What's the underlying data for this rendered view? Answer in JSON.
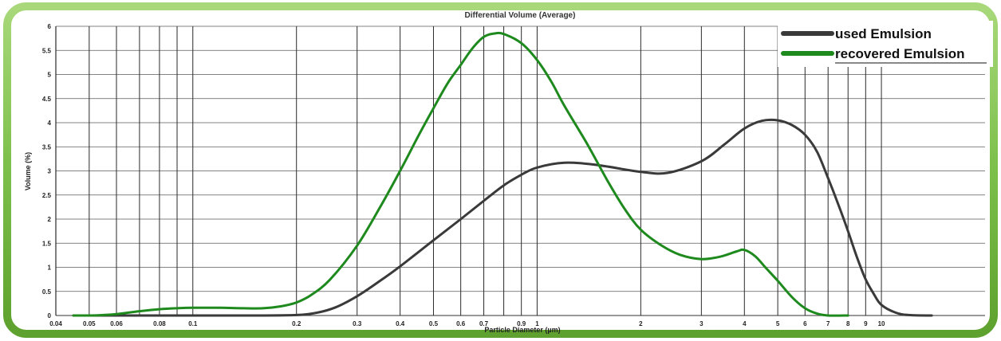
{
  "chart_data": {
    "type": "line",
    "title": "Differential Volume (Average)",
    "xlabel": "Particle Diameter (µm)",
    "ylabel": "Volume (%)",
    "xscale": "log",
    "xlim": [
      0.04,
      20
    ],
    "ylim": [
      0,
      6
    ],
    "grid": true,
    "legend_position": "top-right",
    "x_ticks": [
      0.04,
      0.05,
      0.06,
      0.08,
      0.1,
      0.2,
      0.3,
      0.4,
      0.5,
      0.6,
      0.7,
      0.9,
      1,
      2,
      3,
      4,
      5,
      6,
      7,
      8,
      9,
      10
    ],
    "x_tick_labels": [
      "0.04",
      "0.05",
      "0.06",
      "0.08",
      "0.1",
      "0.2",
      "0.3",
      "0.4",
      "0.5",
      "0.6",
      "0.7",
      "0.9",
      "1",
      "2",
      "3",
      "4",
      "5",
      "6",
      "7",
      "8",
      "9",
      "10"
    ],
    "x_gridlines": [
      0.05,
      0.06,
      0.07,
      0.08,
      0.09,
      0.1,
      0.2,
      0.3,
      0.4,
      0.5,
      0.6,
      0.7,
      0.8,
      0.9,
      1,
      2,
      3,
      4,
      5,
      6,
      7,
      8,
      9,
      10
    ],
    "y_ticks": [
      0,
      0.5,
      1,
      1.5,
      2,
      2.5,
      3,
      3.5,
      4,
      4.5,
      5,
      5.5,
      6
    ],
    "y_tick_labels": [
      "0",
      "0.5",
      "1",
      "1.5",
      "2",
      "2.5",
      "3",
      "3.5",
      "4",
      "4.5",
      "5",
      "5.5",
      "6"
    ],
    "series": [
      {
        "name": "used Emulsion",
        "color": "#3a3a3a",
        "points": [
          [
            0.045,
            0
          ],
          [
            0.1,
            0
          ],
          [
            0.15,
            0
          ],
          [
            0.2,
            0.01
          ],
          [
            0.23,
            0.06
          ],
          [
            0.26,
            0.17
          ],
          [
            0.3,
            0.4
          ],
          [
            0.35,
            0.72
          ],
          [
            0.4,
            1.02
          ],
          [
            0.5,
            1.56
          ],
          [
            0.6,
            2.0
          ],
          [
            0.7,
            2.38
          ],
          [
            0.8,
            2.7
          ],
          [
            0.9,
            2.92
          ],
          [
            1.0,
            3.07
          ],
          [
            1.2,
            3.17
          ],
          [
            1.5,
            3.12
          ],
          [
            2.0,
            2.98
          ],
          [
            2.4,
            2.96
          ],
          [
            3.0,
            3.2
          ],
          [
            3.5,
            3.55
          ],
          [
            4.0,
            3.88
          ],
          [
            4.5,
            4.04
          ],
          [
            5.0,
            4.05
          ],
          [
            5.5,
            3.95
          ],
          [
            6.0,
            3.75
          ],
          [
            6.5,
            3.4
          ],
          [
            7.0,
            2.85
          ],
          [
            7.5,
            2.3
          ],
          [
            8.0,
            1.75
          ],
          [
            8.5,
            1.2
          ],
          [
            9.0,
            0.75
          ],
          [
            9.5,
            0.45
          ],
          [
            10.0,
            0.22
          ],
          [
            11.0,
            0.06
          ],
          [
            12.0,
            0.01
          ],
          [
            14.0,
            0
          ]
        ]
      },
      {
        "name": "recovered Emulsion",
        "color": "#1e8a1e",
        "points": [
          [
            0.045,
            0
          ],
          [
            0.05,
            0
          ],
          [
            0.055,
            0.01
          ],
          [
            0.06,
            0.03
          ],
          [
            0.07,
            0.09
          ],
          [
            0.08,
            0.13
          ],
          [
            0.09,
            0.15
          ],
          [
            0.1,
            0.16
          ],
          [
            0.12,
            0.16
          ],
          [
            0.14,
            0.15
          ],
          [
            0.16,
            0.15
          ],
          [
            0.18,
            0.19
          ],
          [
            0.2,
            0.27
          ],
          [
            0.22,
            0.42
          ],
          [
            0.25,
            0.74
          ],
          [
            0.3,
            1.45
          ],
          [
            0.35,
            2.25
          ],
          [
            0.4,
            3.0
          ],
          [
            0.45,
            3.7
          ],
          [
            0.5,
            4.3
          ],
          [
            0.55,
            4.82
          ],
          [
            0.6,
            5.2
          ],
          [
            0.65,
            5.55
          ],
          [
            0.7,
            5.78
          ],
          [
            0.75,
            5.85
          ],
          [
            0.8,
            5.84
          ],
          [
            0.9,
            5.65
          ],
          [
            1.0,
            5.3
          ],
          [
            1.1,
            4.85
          ],
          [
            1.2,
            4.35
          ],
          [
            1.4,
            3.55
          ],
          [
            1.6,
            2.8
          ],
          [
            1.8,
            2.2
          ],
          [
            2.0,
            1.78
          ],
          [
            2.3,
            1.45
          ],
          [
            2.6,
            1.26
          ],
          [
            3.0,
            1.17
          ],
          [
            3.4,
            1.22
          ],
          [
            3.8,
            1.33
          ],
          [
            4.0,
            1.36
          ],
          [
            4.3,
            1.23
          ],
          [
            4.6,
            1.0
          ],
          [
            5.0,
            0.72
          ],
          [
            5.5,
            0.38
          ],
          [
            6.0,
            0.15
          ],
          [
            6.5,
            0.04
          ],
          [
            7.0,
            0
          ],
          [
            8.0,
            0
          ]
        ]
      }
    ]
  }
}
